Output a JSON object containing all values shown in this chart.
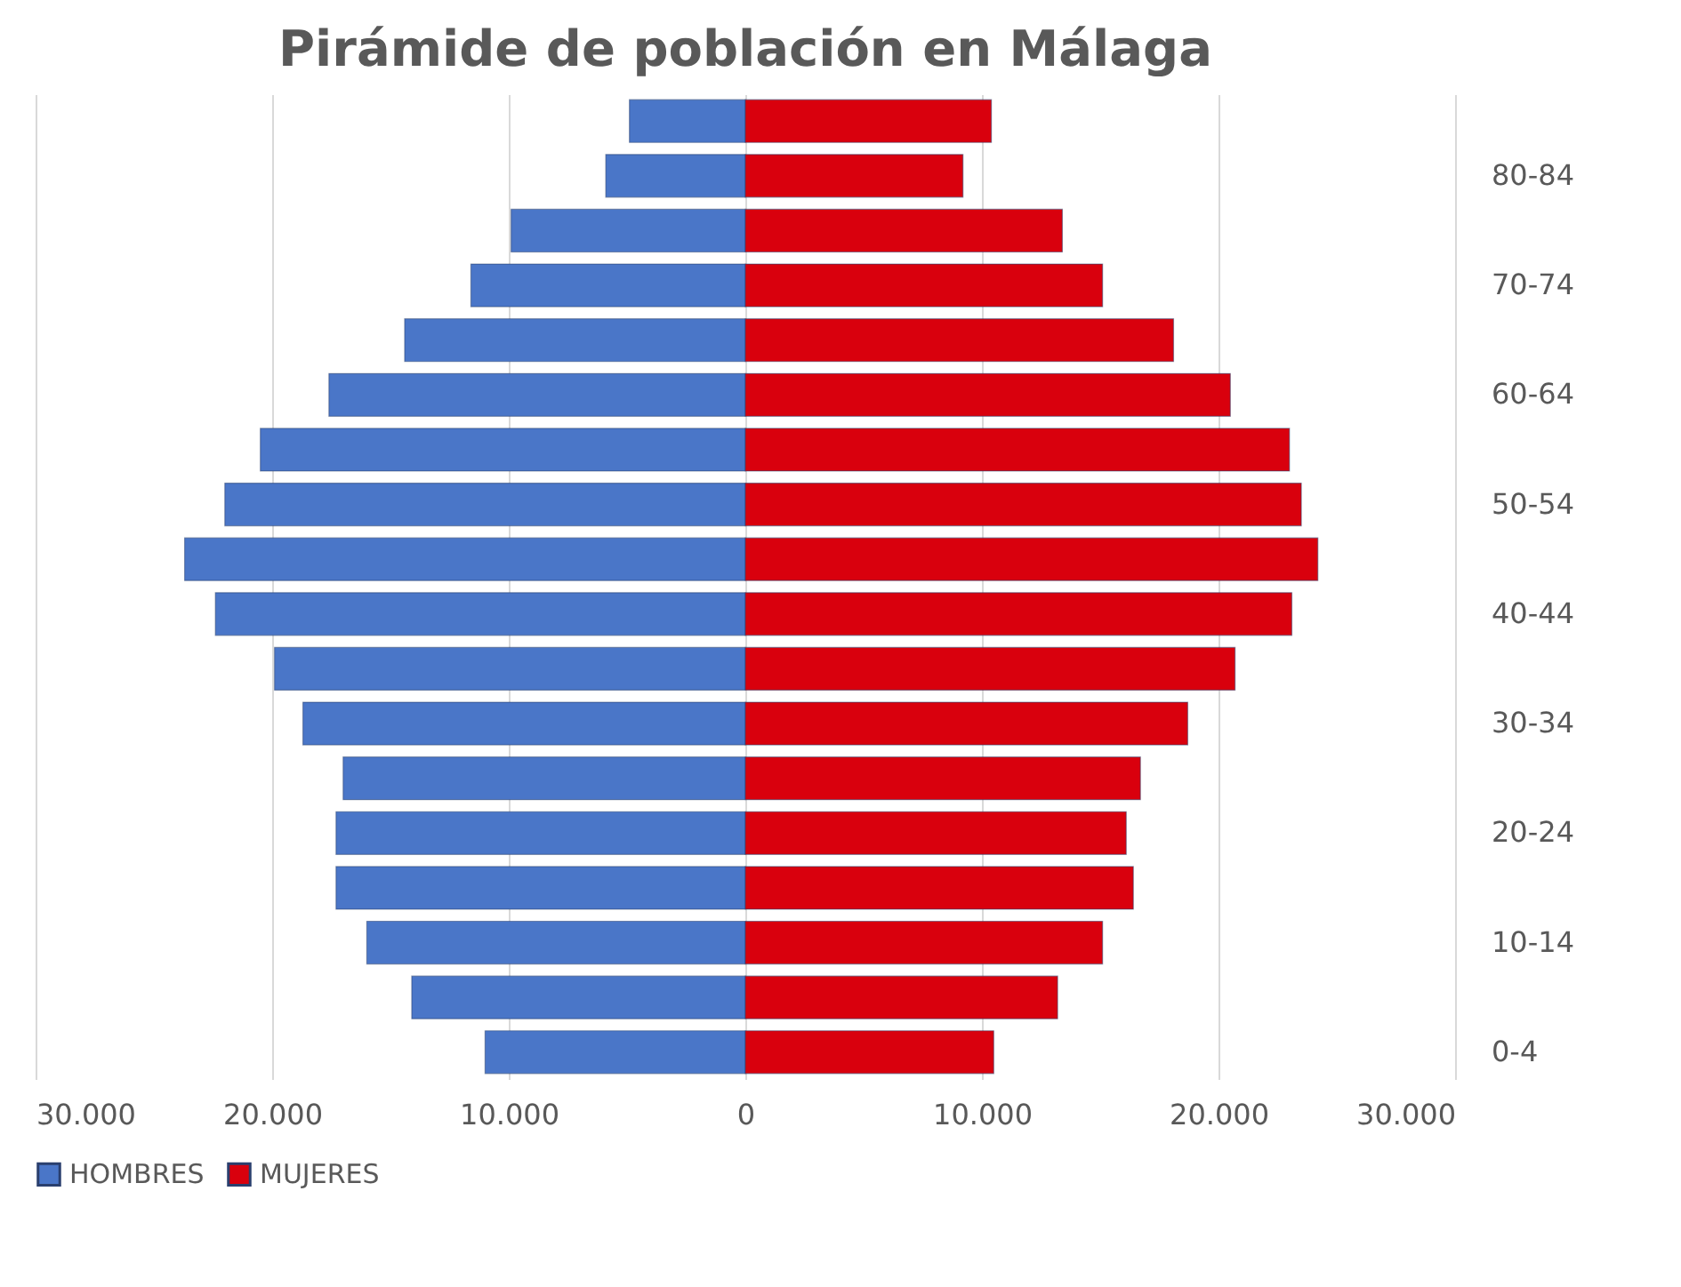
{
  "chart_data": {
    "type": "bar",
    "orientation": "horizontal",
    "title": "Pirámide de población en Málaga",
    "categories": [
      null,
      "80-84",
      null,
      "70-74",
      null,
      "60-64",
      null,
      "50-54",
      null,
      "40-44",
      null,
      "30-34",
      null,
      "20-24",
      null,
      "10-14",
      null,
      "0-4"
    ],
    "series": [
      {
        "name": "HOMBRES",
        "color": "#4a76c8",
        "values": [
          -4900,
          -5900,
          -9900,
          -11600,
          -14400,
          -17600,
          -20500,
          -22000,
          -23700,
          -22400,
          -19900,
          -18700,
          -17000,
          -17300,
          -17300,
          -16000,
          -14100,
          -11000
        ]
      },
      {
        "name": "MUJERES",
        "color": "#d9000d",
        "values": [
          10400,
          9200,
          13400,
          15100,
          18100,
          20500,
          23000,
          23500,
          24200,
          23100,
          20700,
          18700,
          16700,
          16100,
          16400,
          15100,
          13200,
          10500
        ]
      }
    ],
    "xlim": [
      -30000,
      30000
    ],
    "xticks": [
      {
        "value": -30000,
        "label": "30.000"
      },
      {
        "value": -20000,
        "label": "20.000"
      },
      {
        "value": -10000,
        "label": "10.000"
      },
      0,
      {
        "value": 10000,
        "label": "10.000"
      },
      {
        "value": 20000,
        "label": "20.000"
      },
      {
        "value": 30000,
        "label": "30.000"
      }
    ],
    "stacked": true,
    "grid": "x",
    "legend": "bottom"
  }
}
